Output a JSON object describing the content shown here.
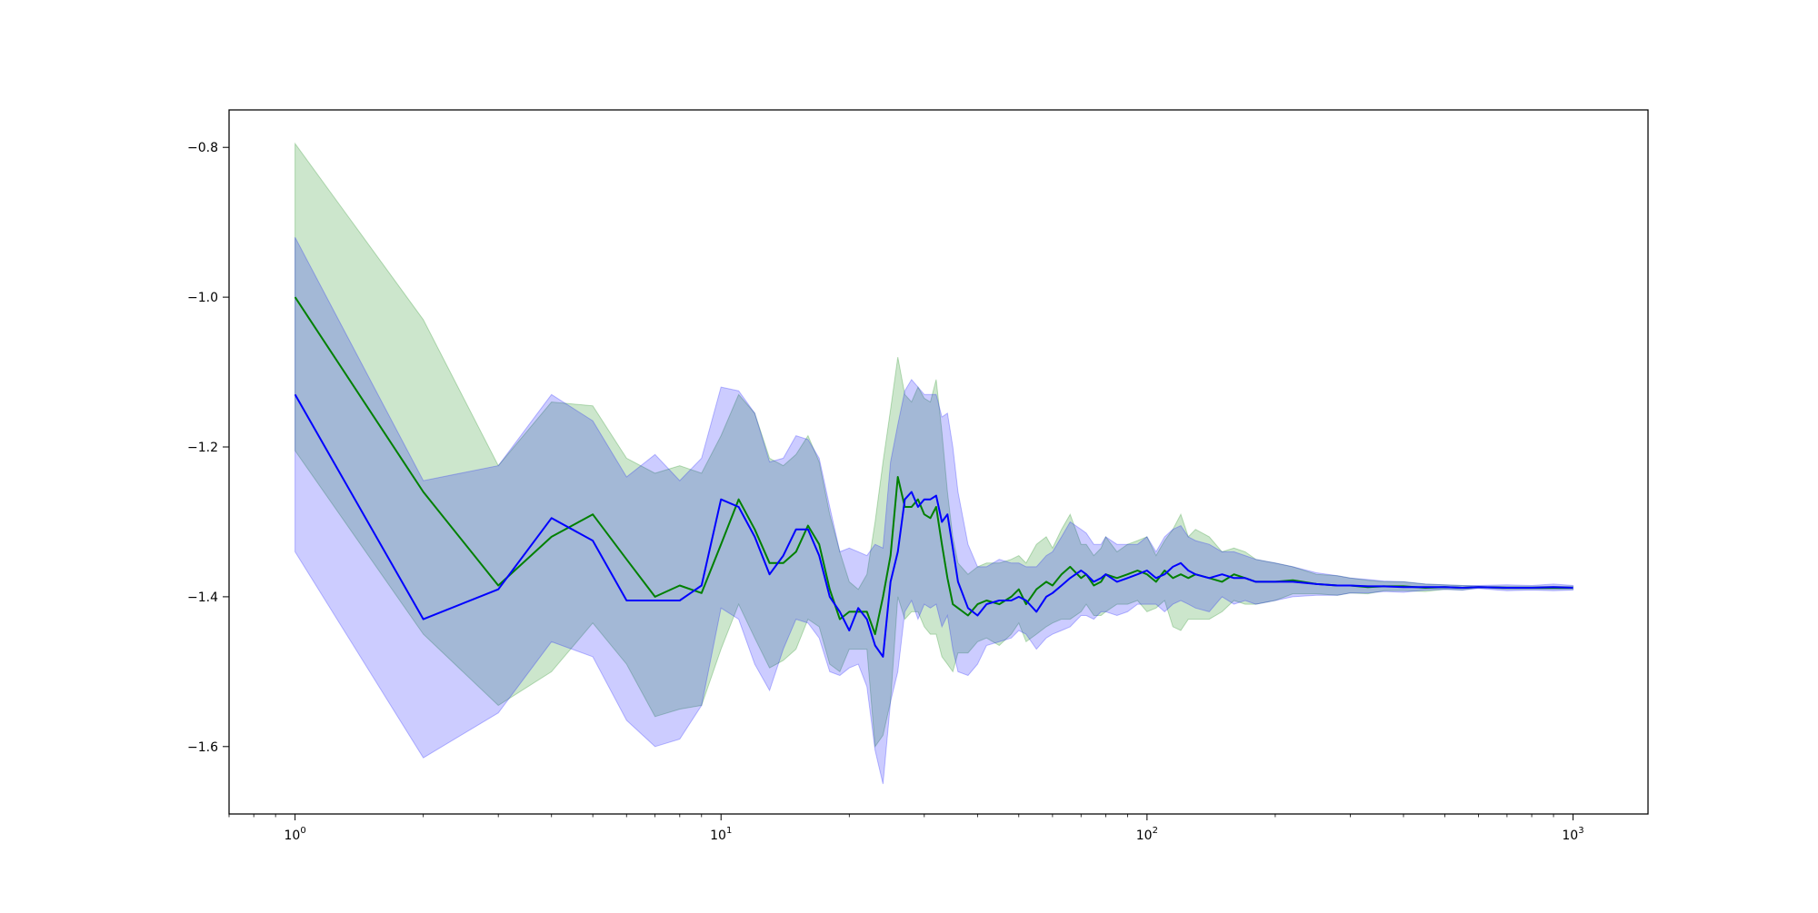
{
  "chart_data": {
    "type": "line",
    "x_scale": "log",
    "xlim": [
      0.7,
      1500
    ],
    "ylim": [
      -1.69,
      -0.75
    ],
    "grid": false,
    "legend": "none",
    "xticks": [
      {
        "value": 1,
        "base": "10",
        "exp": "0"
      },
      {
        "value": 10,
        "base": "10",
        "exp": "1"
      },
      {
        "value": 100,
        "base": "10",
        "exp": "2"
      },
      {
        "value": 1000,
        "base": "10",
        "exp": "3"
      }
    ],
    "yticks": [
      {
        "value": -0.8,
        "label": "−0.8"
      },
      {
        "value": -1.0,
        "label": "−1.0"
      },
      {
        "value": -1.2,
        "label": "−1.2"
      },
      {
        "value": -1.4,
        "label": "−1.4"
      },
      {
        "value": -1.6,
        "label": "−1.6"
      }
    ],
    "series": [
      {
        "color": "#008000",
        "band_color": "#008000",
        "band_opacity": 0.2,
        "x": [
          1,
          2,
          3,
          4,
          5,
          6,
          7,
          8,
          9,
          10,
          11,
          12,
          13,
          14,
          15,
          16,
          17,
          18,
          19,
          20,
          21,
          22,
          23,
          24,
          25,
          26,
          27,
          28,
          29,
          30,
          31,
          32,
          33,
          34,
          35,
          36,
          38,
          40,
          42,
          45,
          48,
          50,
          52,
          55,
          58,
          60,
          63,
          66,
          70,
          72,
          75,
          78,
          80,
          85,
          90,
          95,
          100,
          105,
          110,
          115,
          120,
          125,
          130,
          140,
          150,
          160,
          170,
          180,
          200,
          220,
          250,
          280,
          300,
          330,
          360,
          400,
          450,
          500,
          550,
          600,
          700,
          800,
          900,
          1000
        ],
        "y": [
          -1.0,
          -1.26,
          -1.385,
          -1.32,
          -1.29,
          -1.35,
          -1.4,
          -1.385,
          -1.395,
          -1.33,
          -1.27,
          -1.31,
          -1.355,
          -1.355,
          -1.34,
          -1.305,
          -1.33,
          -1.39,
          -1.43,
          -1.42,
          -1.42,
          -1.42,
          -1.45,
          -1.4,
          -1.345,
          -1.24,
          -1.28,
          -1.28,
          -1.27,
          -1.29,
          -1.295,
          -1.28,
          -1.33,
          -1.375,
          -1.41,
          -1.415,
          -1.425,
          -1.41,
          -1.405,
          -1.41,
          -1.4,
          -1.39,
          -1.41,
          -1.39,
          -1.38,
          -1.385,
          -1.37,
          -1.36,
          -1.375,
          -1.37,
          -1.385,
          -1.38,
          -1.37,
          -1.375,
          -1.37,
          -1.365,
          -1.37,
          -1.38,
          -1.365,
          -1.375,
          -1.37,
          -1.375,
          -1.37,
          -1.375,
          -1.38,
          -1.37,
          -1.375,
          -1.38,
          -1.38,
          -1.378,
          -1.383,
          -1.385,
          -1.385,
          -1.387,
          -1.386,
          -1.386,
          -1.388,
          -1.387,
          -1.388,
          -1.387,
          -1.388,
          -1.388,
          -1.388,
          -1.388
        ],
        "upper": [
          -0.795,
          -1.03,
          -1.225,
          -1.14,
          -1.145,
          -1.215,
          -1.235,
          -1.225,
          -1.235,
          -1.185,
          -1.13,
          -1.155,
          -1.215,
          -1.225,
          -1.21,
          -1.185,
          -1.22,
          -1.29,
          -1.34,
          -1.38,
          -1.39,
          -1.37,
          -1.3,
          -1.22,
          -1.15,
          -1.08,
          -1.13,
          -1.14,
          -1.12,
          -1.135,
          -1.14,
          -1.11,
          -1.18,
          -1.26,
          -1.32,
          -1.355,
          -1.37,
          -1.36,
          -1.355,
          -1.355,
          -1.35,
          -1.345,
          -1.355,
          -1.33,
          -1.32,
          -1.335,
          -1.31,
          -1.29,
          -1.33,
          -1.33,
          -1.345,
          -1.335,
          -1.32,
          -1.34,
          -1.33,
          -1.325,
          -1.32,
          -1.345,
          -1.325,
          -1.31,
          -1.29,
          -1.32,
          -1.31,
          -1.32,
          -1.34,
          -1.335,
          -1.34,
          -1.35,
          -1.355,
          -1.36,
          -1.37,
          -1.372,
          -1.375,
          -1.378,
          -1.38,
          -1.38,
          -1.383,
          -1.384,
          -1.385,
          -1.386,
          -1.386,
          -1.386,
          -1.386,
          -1.386
        ],
        "lower": [
          -1.205,
          -1.45,
          -1.545,
          -1.5,
          -1.435,
          -1.49,
          -1.56,
          -1.55,
          -1.545,
          -1.47,
          -1.41,
          -1.455,
          -1.495,
          -1.485,
          -1.47,
          -1.43,
          -1.44,
          -1.49,
          -1.5,
          -1.47,
          -1.47,
          -1.47,
          -1.6,
          -1.585,
          -1.54,
          -1.4,
          -1.43,
          -1.42,
          -1.42,
          -1.44,
          -1.45,
          -1.45,
          -1.48,
          -1.49,
          -1.5,
          -1.475,
          -1.475,
          -1.46,
          -1.455,
          -1.465,
          -1.45,
          -1.435,
          -1.46,
          -1.45,
          -1.44,
          -1.435,
          -1.43,
          -1.43,
          -1.42,
          -1.41,
          -1.425,
          -1.425,
          -1.42,
          -1.41,
          -1.41,
          -1.405,
          -1.42,
          -1.415,
          -1.405,
          -1.44,
          -1.445,
          -1.43,
          -1.43,
          -1.43,
          -1.42,
          -1.405,
          -1.41,
          -1.41,
          -1.405,
          -1.396,
          -1.396,
          -1.398,
          -1.395,
          -1.396,
          -1.392,
          -1.392,
          -1.393,
          -1.39,
          -1.391,
          -1.388,
          -1.39,
          -1.39,
          -1.39,
          -1.39
        ]
      },
      {
        "color": "#0000ff",
        "band_color": "#0000ff",
        "band_opacity": 0.2,
        "x": [
          1,
          2,
          3,
          4,
          5,
          6,
          7,
          8,
          9,
          10,
          11,
          12,
          13,
          14,
          15,
          16,
          17,
          18,
          19,
          20,
          21,
          22,
          23,
          24,
          25,
          26,
          27,
          28,
          29,
          30,
          31,
          32,
          33,
          34,
          35,
          36,
          38,
          40,
          42,
          45,
          48,
          50,
          52,
          55,
          58,
          60,
          63,
          66,
          70,
          72,
          75,
          78,
          80,
          85,
          90,
          95,
          100,
          105,
          110,
          115,
          120,
          125,
          130,
          140,
          150,
          160,
          170,
          180,
          200,
          220,
          250,
          280,
          300,
          330,
          360,
          400,
          450,
          500,
          550,
          600,
          700,
          800,
          900,
          1000
        ],
        "y": [
          -1.13,
          -1.43,
          -1.39,
          -1.295,
          -1.325,
          -1.405,
          -1.405,
          -1.405,
          -1.385,
          -1.27,
          -1.28,
          -1.32,
          -1.37,
          -1.345,
          -1.31,
          -1.31,
          -1.345,
          -1.4,
          -1.42,
          -1.445,
          -1.415,
          -1.43,
          -1.465,
          -1.48,
          -1.38,
          -1.34,
          -1.27,
          -1.26,
          -1.28,
          -1.27,
          -1.27,
          -1.265,
          -1.3,
          -1.29,
          -1.335,
          -1.38,
          -1.415,
          -1.425,
          -1.41,
          -1.405,
          -1.405,
          -1.4,
          -1.405,
          -1.42,
          -1.4,
          -1.395,
          -1.385,
          -1.375,
          -1.365,
          -1.37,
          -1.38,
          -1.375,
          -1.37,
          -1.38,
          -1.375,
          -1.37,
          -1.365,
          -1.375,
          -1.37,
          -1.36,
          -1.355,
          -1.365,
          -1.37,
          -1.375,
          -1.37,
          -1.375,
          -1.375,
          -1.38,
          -1.38,
          -1.38,
          -1.383,
          -1.385,
          -1.385,
          -1.386,
          -1.386,
          -1.387,
          -1.387,
          -1.387,
          -1.388,
          -1.387,
          -1.388,
          -1.388,
          -1.387,
          -1.388
        ],
        "upper": [
          -0.92,
          -1.245,
          -1.225,
          -1.13,
          -1.165,
          -1.24,
          -1.21,
          -1.245,
          -1.215,
          -1.12,
          -1.125,
          -1.155,
          -1.22,
          -1.215,
          -1.185,
          -1.19,
          -1.215,
          -1.28,
          -1.34,
          -1.335,
          -1.34,
          -1.345,
          -1.33,
          -1.335,
          -1.22,
          -1.17,
          -1.125,
          -1.11,
          -1.12,
          -1.13,
          -1.13,
          -1.13,
          -1.16,
          -1.155,
          -1.2,
          -1.26,
          -1.33,
          -1.36,
          -1.36,
          -1.35,
          -1.355,
          -1.355,
          -1.36,
          -1.36,
          -1.345,
          -1.34,
          -1.32,
          -1.3,
          -1.31,
          -1.315,
          -1.33,
          -1.33,
          -1.32,
          -1.33,
          -1.33,
          -1.33,
          -1.32,
          -1.34,
          -1.32,
          -1.31,
          -1.305,
          -1.32,
          -1.325,
          -1.33,
          -1.34,
          -1.34,
          -1.345,
          -1.35,
          -1.355,
          -1.36,
          -1.368,
          -1.372,
          -1.375,
          -1.377,
          -1.379,
          -1.38,
          -1.383,
          -1.384,
          -1.385,
          -1.385,
          -1.384,
          -1.385,
          -1.383,
          -1.385
        ],
        "lower": [
          -1.34,
          -1.615,
          -1.555,
          -1.46,
          -1.48,
          -1.565,
          -1.6,
          -1.59,
          -1.545,
          -1.415,
          -1.43,
          -1.49,
          -1.525,
          -1.47,
          -1.43,
          -1.435,
          -1.455,
          -1.5,
          -1.505,
          -1.495,
          -1.49,
          -1.52,
          -1.605,
          -1.65,
          -1.54,
          -1.5,
          -1.42,
          -1.405,
          -1.43,
          -1.41,
          -1.415,
          -1.41,
          -1.44,
          -1.425,
          -1.47,
          -1.5,
          -1.505,
          -1.49,
          -1.465,
          -1.46,
          -1.455,
          -1.445,
          -1.45,
          -1.47,
          -1.455,
          -1.45,
          -1.445,
          -1.44,
          -1.425,
          -1.425,
          -1.43,
          -1.42,
          -1.42,
          -1.425,
          -1.42,
          -1.41,
          -1.41,
          -1.41,
          -1.42,
          -1.41,
          -1.405,
          -1.41,
          -1.415,
          -1.42,
          -1.4,
          -1.41,
          -1.405,
          -1.41,
          -1.405,
          -1.4,
          -1.398,
          -1.398,
          -1.395,
          -1.395,
          -1.393,
          -1.394,
          -1.391,
          -1.39,
          -1.391,
          -1.389,
          -1.392,
          -1.391,
          -1.392,
          -1.391
        ]
      }
    ]
  }
}
